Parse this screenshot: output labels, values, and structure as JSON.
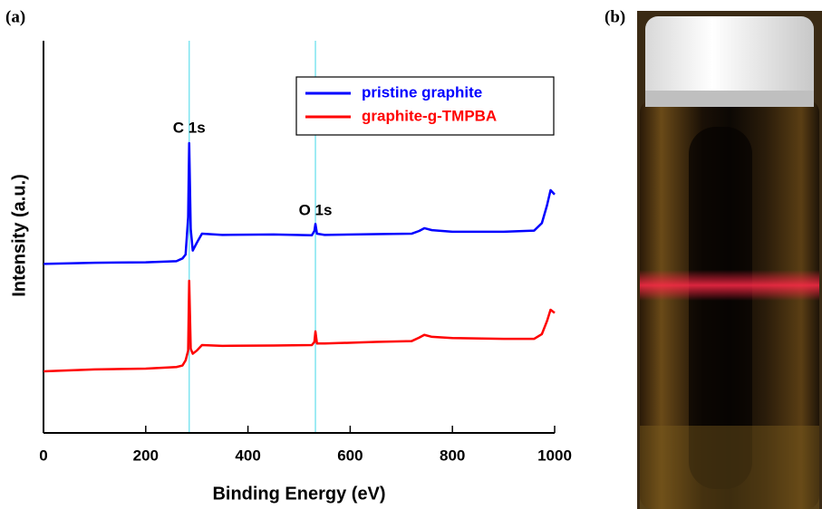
{
  "chart_data": {
    "type": "line",
    "panel_labels": [
      "(a)",
      "(b)"
    ],
    "xlabel": "Binding Energy (eV)",
    "ylabel": "Intensity (a.u.)",
    "x": [
      0,
      100,
      200,
      260,
      272,
      278,
      283,
      285,
      288,
      292,
      300,
      310,
      350,
      450,
      525,
      530,
      532,
      535,
      550,
      650,
      720,
      735,
      745,
      760,
      800,
      900,
      960,
      975,
      985,
      992,
      1000
    ],
    "series": [
      {
        "name": "pristine graphite",
        "color": "#0000ff",
        "values": [
          43.1,
          43.4,
          43.5,
          43.8,
          44.5,
          45.5,
          55,
          73.9,
          52,
          46.5,
          48.5,
          50.8,
          50.5,
          50.6,
          50.4,
          51.5,
          53.3,
          50.8,
          50.5,
          50.7,
          50.8,
          51.5,
          52.2,
          51.7,
          51.3,
          51.3,
          51.6,
          53.5,
          58,
          61.9,
          60.8
        ]
      },
      {
        "name": "graphite-g-TMPBA",
        "color": "#ff0000",
        "values": [
          15.7,
          16.2,
          16.4,
          16.8,
          17.2,
          18.5,
          21,
          38.8,
          21.5,
          20.2,
          21,
          22.4,
          22.2,
          22.3,
          22.4,
          23.2,
          25.9,
          22.8,
          22.8,
          23.2,
          23.4,
          24.3,
          25,
          24.5,
          24.2,
          24,
          24,
          25.2,
          28.5,
          31.4,
          30.6
        ]
      }
    ],
    "xlim": [
      0,
      1000
    ],
    "xticks": [
      0,
      200,
      400,
      600,
      800,
      1000
    ],
    "ylim": [
      0,
      100
    ],
    "vlines": [
      285,
      532
    ],
    "vline_color": "#7fe5f0",
    "annotations": [
      {
        "text": "C 1s",
        "x": 285,
        "y": 77.6
      },
      {
        "text": "O 1s",
        "x": 532,
        "y": 56.6
      }
    ],
    "legend": "top-right"
  }
}
